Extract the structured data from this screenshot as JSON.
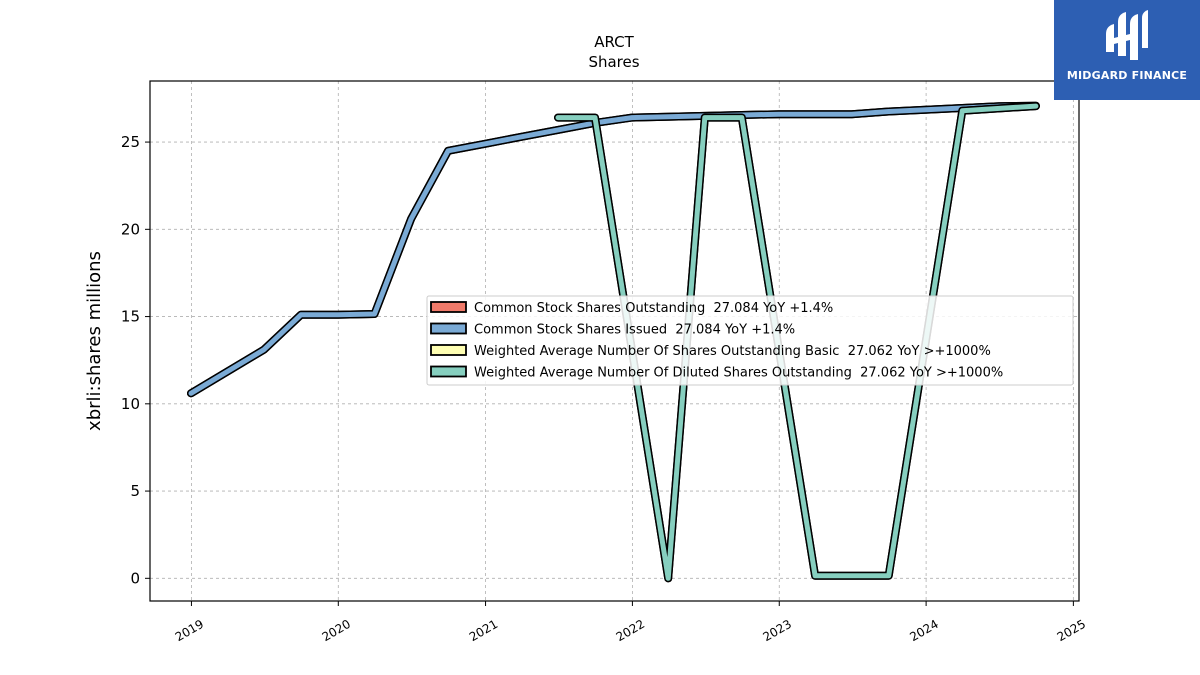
{
  "chart_data": {
    "type": "line",
    "title": "ARCT",
    "subtitle": "Shares",
    "ylabel": "xbrli:shares millions",
    "xlabel": "",
    "ylim": [
      -1.3,
      28.5
    ],
    "xlim": [
      "2018-09-20",
      "2025-01-15"
    ],
    "grid": true,
    "legend_position": "center-right",
    "x_ticks": [
      "2019",
      "2020",
      "2021",
      "2022",
      "2023",
      "2024",
      "2025"
    ],
    "y_ticks": [
      "0",
      "5",
      "10",
      "15",
      "20",
      "25"
    ],
    "series": [
      {
        "name": "Common Stock Shares Outstanding  27.084 YoY +1.4%",
        "color": "#f07a6a",
        "x": [
          "2018-12-31",
          "2019-06-30",
          "2019-09-30",
          "2019-12-31",
          "2020-03-31",
          "2020-06-30",
          "2020-09-30",
          "2020-12-31",
          "2021-03-31",
          "2021-06-30",
          "2021-09-30",
          "2021-12-31",
          "2022-03-31",
          "2022-06-30",
          "2022-09-30",
          "2022-12-31",
          "2023-03-31",
          "2023-06-30",
          "2023-09-30",
          "2023-12-31",
          "2024-03-31",
          "2024-06-30",
          "2024-09-30"
        ],
        "values": [
          10.6,
          13.1,
          15.1,
          15.1,
          15.15,
          20.6,
          24.5,
          24.9,
          25.3,
          25.7,
          26.1,
          26.4,
          26.45,
          26.5,
          26.55,
          26.6,
          26.6,
          26.6,
          26.75,
          26.85,
          26.95,
          27.05,
          27.084
        ]
      },
      {
        "name": "Common Stock Shares Issued  27.084 YoY +1.4%",
        "color": "#7aaad5",
        "x": [
          "2018-12-31",
          "2019-06-30",
          "2019-09-30",
          "2019-12-31",
          "2020-03-31",
          "2020-06-30",
          "2020-09-30",
          "2020-12-31",
          "2021-03-31",
          "2021-06-30",
          "2021-09-30",
          "2021-12-31",
          "2022-03-31",
          "2022-06-30",
          "2022-09-30",
          "2022-12-31",
          "2023-03-31",
          "2023-06-30",
          "2023-09-30",
          "2023-12-31",
          "2024-03-31",
          "2024-06-30",
          "2024-09-30"
        ],
        "values": [
          10.6,
          13.1,
          15.1,
          15.1,
          15.15,
          20.6,
          24.5,
          24.9,
          25.3,
          25.7,
          26.1,
          26.4,
          26.45,
          26.5,
          26.55,
          26.6,
          26.6,
          26.6,
          26.75,
          26.85,
          26.95,
          27.05,
          27.084
        ]
      },
      {
        "name": "Weighted Average Number Of Shares Outstanding Basic  27.062 YoY >+1000%",
        "color": "#ffffb3",
        "x": [
          "2021-06-30",
          "2021-09-30",
          "2022-03-31",
          "2022-06-30",
          "2022-09-30",
          "2023-03-31",
          "2023-06-30",
          "2023-09-30",
          "2024-03-31",
          "2024-09-30"
        ],
        "values": [
          26.4,
          26.4,
          0,
          26.4,
          26.4,
          0.15,
          0.15,
          0.15,
          26.8,
          27.062
        ]
      },
      {
        "name": "Weighted Average Number Of Diluted Shares Outstanding  27.062 YoY >+1000%",
        "color": "#86cfbf",
        "x": [
          "2021-06-30",
          "2021-09-30",
          "2022-03-31",
          "2022-06-30",
          "2022-09-30",
          "2023-03-31",
          "2023-06-30",
          "2023-09-30",
          "2024-03-31",
          "2024-09-30"
        ],
        "values": [
          26.4,
          26.4,
          0,
          26.4,
          26.4,
          0.15,
          0.15,
          0.15,
          26.8,
          27.062
        ]
      }
    ]
  },
  "logo": {
    "text": "MIDGARD FINANCE",
    "background": "#2d5fb3"
  }
}
